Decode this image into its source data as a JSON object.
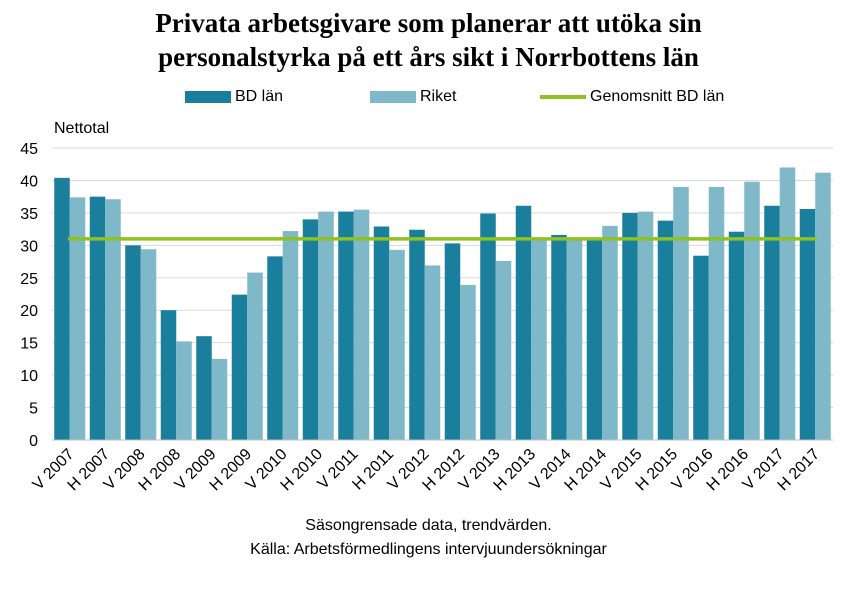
{
  "chart_data": {
    "type": "bar",
    "title_lines": [
      "Privata arbetsgivare som planerar att utöka sin",
      "personalstyrka på ett års sikt i Norrbottens län"
    ],
    "ylabel": "Nettotal",
    "ylim": [
      0,
      45
    ],
    "yticks": [
      0,
      5,
      10,
      15,
      20,
      25,
      30,
      35,
      40,
      45
    ],
    "grid": true,
    "legend_position": "top",
    "categories": [
      "V 2007",
      "H 2007",
      "V 2008",
      "H 2008",
      "V 2009",
      "H 2009",
      "V 2010",
      "H 2010",
      "V 2011",
      "H 2011",
      "V 2012",
      "H 2012",
      "V 2013",
      "H 2013",
      "V 2014",
      "H 2014",
      "V 2015",
      "H 2015",
      "V 2016",
      "H 2016",
      "V 2017",
      "H 2017"
    ],
    "series": [
      {
        "name": "BD län",
        "color": "#1a7f9c",
        "values": [
          40.4,
          37.5,
          30.0,
          20.0,
          16.0,
          22.4,
          28.3,
          34.0,
          35.2,
          32.9,
          32.4,
          30.3,
          34.9,
          36.1,
          31.6,
          31.0,
          35.0,
          33.8,
          28.4,
          32.1,
          36.1,
          35.6
        ]
      },
      {
        "name": "Riket",
        "color": "#7fb8c9",
        "values": [
          37.4,
          37.1,
          29.4,
          15.2,
          12.5,
          25.8,
          32.2,
          35.2,
          35.5,
          29.3,
          26.9,
          23.9,
          27.6,
          31.0,
          31.0,
          33.0,
          35.2,
          39.0,
          39.0,
          39.8,
          42.0,
          41.2
        ]
      }
    ],
    "reference_line": {
      "name": "Genomsnitt BD län",
      "color": "#8dc21f",
      "value": 31.0
    },
    "footer_lines": [
      "Säsongrensade data, trendvärden.",
      "Källa: Arbetsförmedlingens  intervjuundersökningar"
    ]
  }
}
